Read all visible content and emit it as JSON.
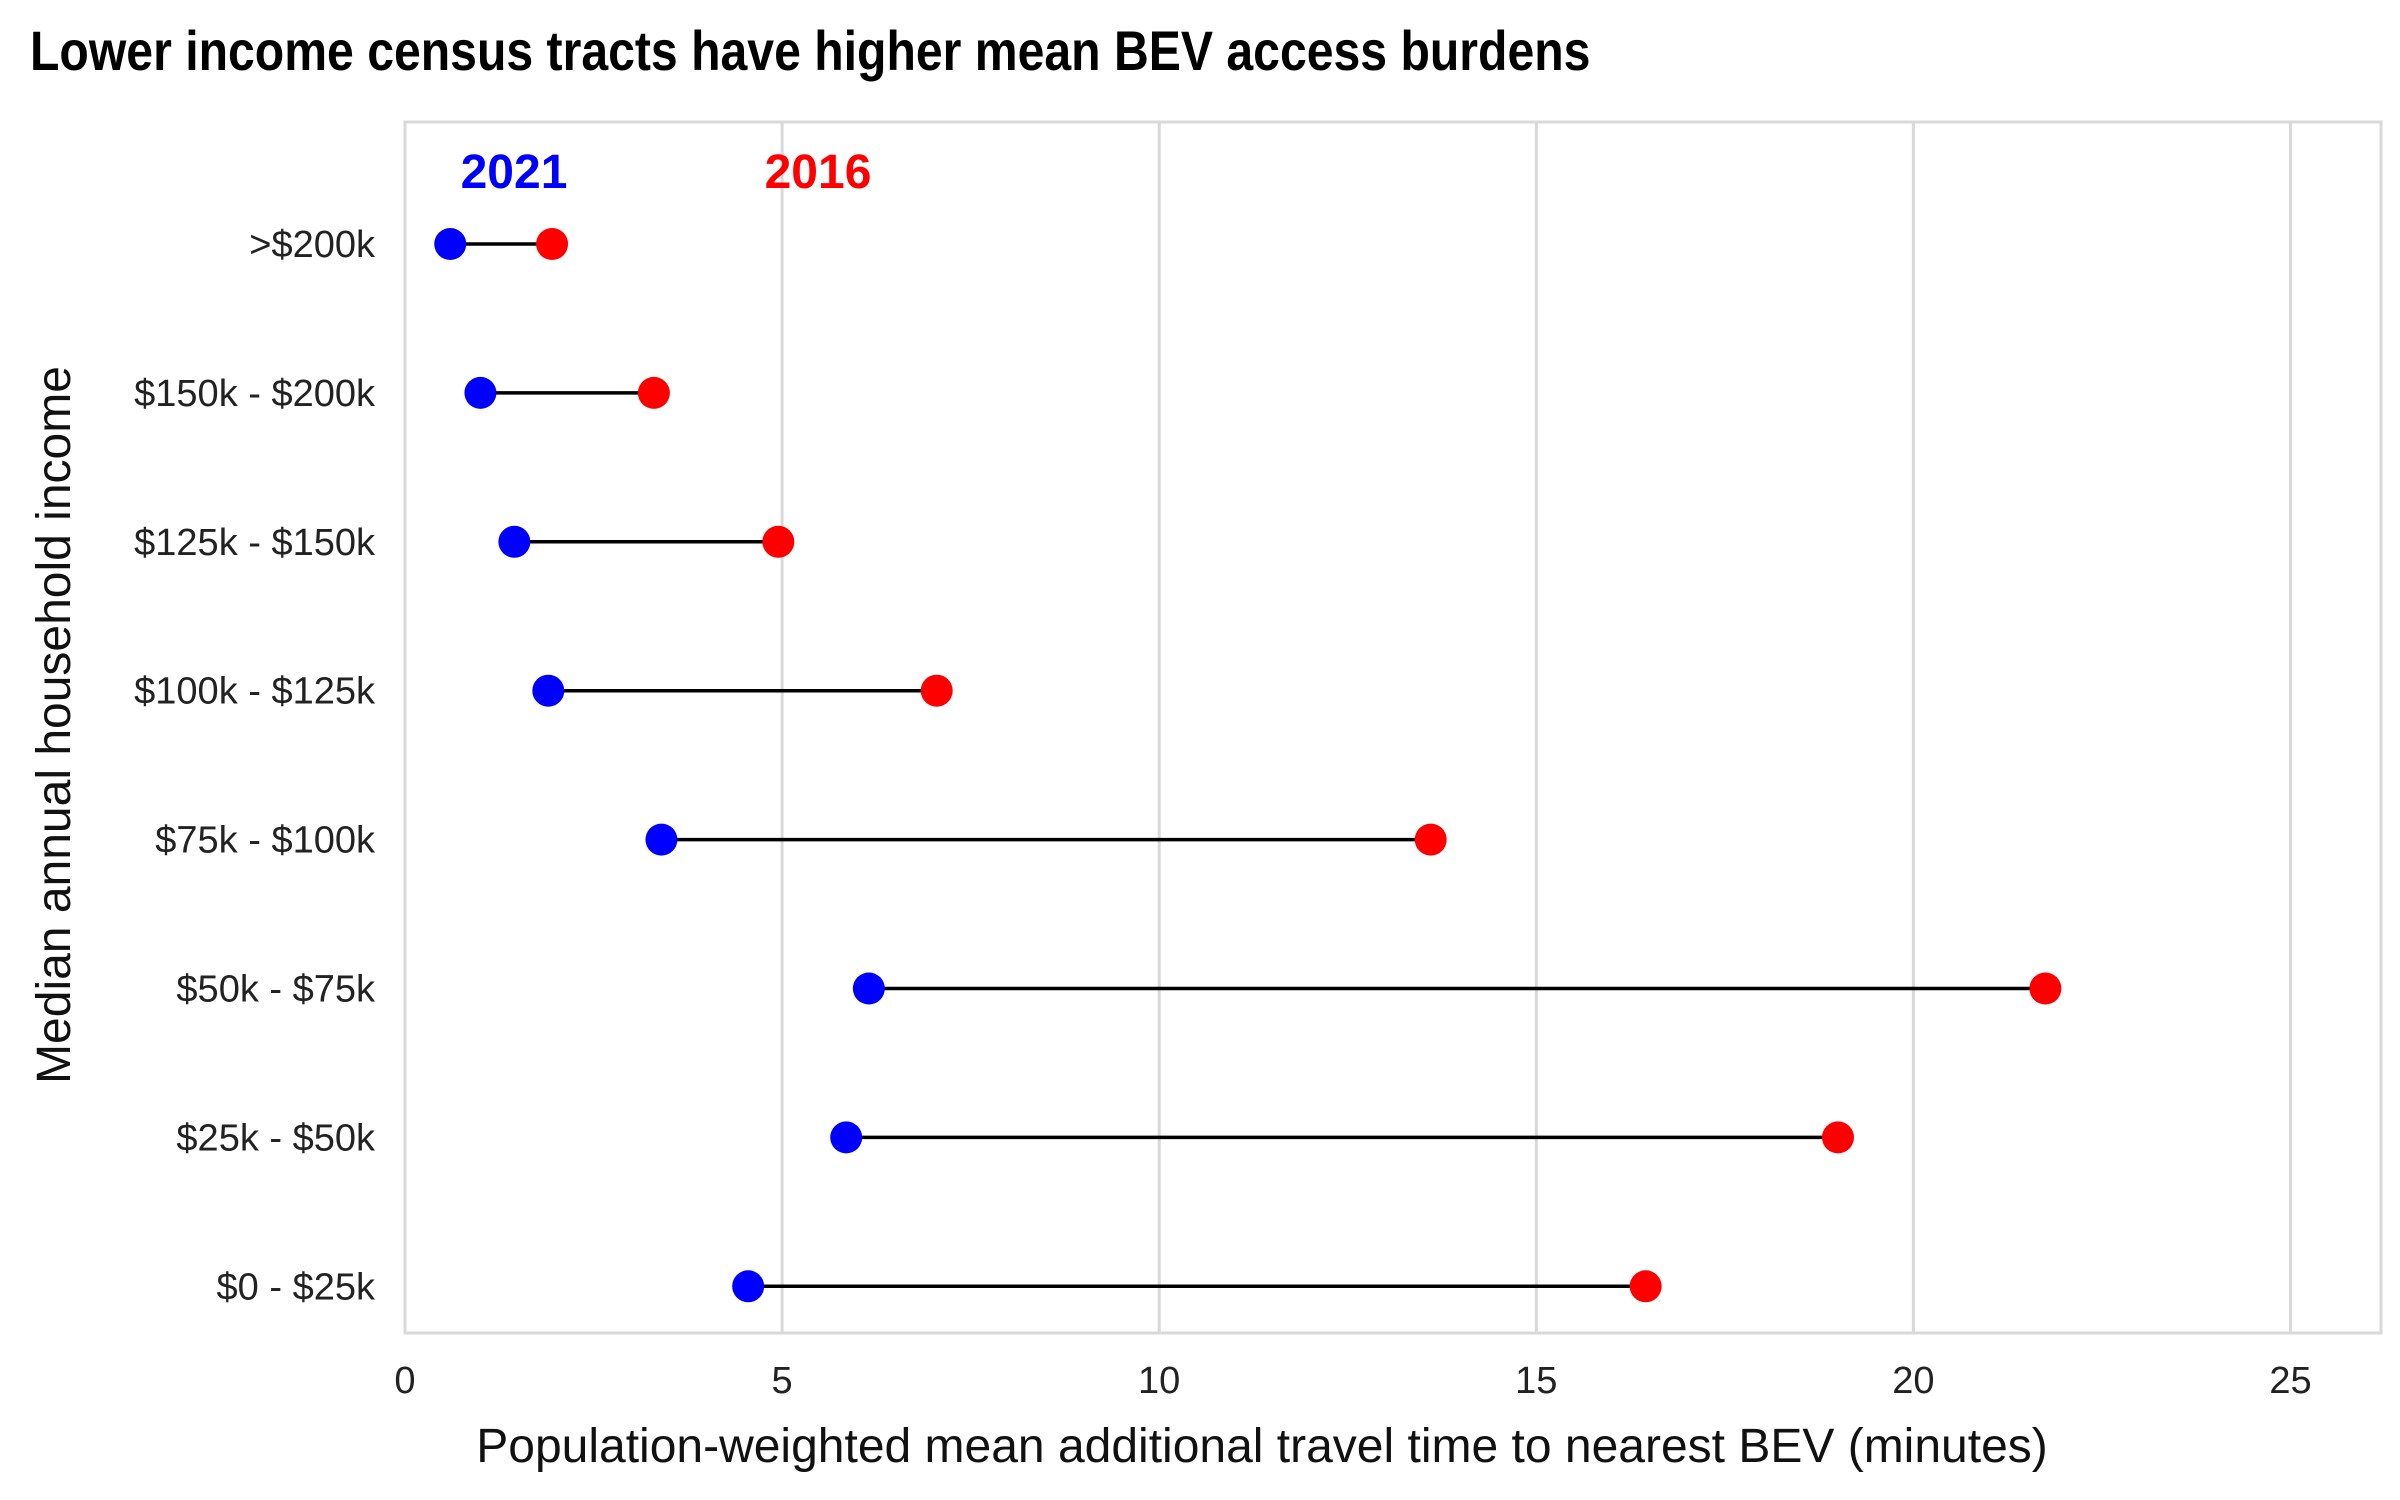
{
  "chart_data": {
    "type": "dumbbell",
    "title": "Lower income census tracts have higher mean BEV access burdens",
    "xlabel": "Population-weighted mean additional travel time to nearest BEV (minutes)",
    "ylabel": "Median annual household income",
    "xlim": [
      0,
      26.2
    ],
    "x_ticks": [
      0,
      5,
      10,
      15,
      20,
      25
    ],
    "grid": "vertical major gridlines",
    "categories": [
      ">$200k",
      "$150k - $200k",
      "$125k - $150k",
      "$100k - $125k",
      "$75k - $100k",
      "$50k - $75k",
      "$25k - $50k",
      "$0 - $25k"
    ],
    "series": [
      {
        "name": "2021",
        "color": "#0000ff",
        "values": [
          0.6,
          1.0,
          1.45,
          1.9,
          3.4,
          6.15,
          5.85,
          4.55
        ]
      },
      {
        "name": "2016",
        "color": "#ff0000",
        "values": [
          1.95,
          3.3,
          4.95,
          7.05,
          13.6,
          21.75,
          19.0,
          16.45
        ]
      }
    ],
    "connector_color": "#000000"
  }
}
